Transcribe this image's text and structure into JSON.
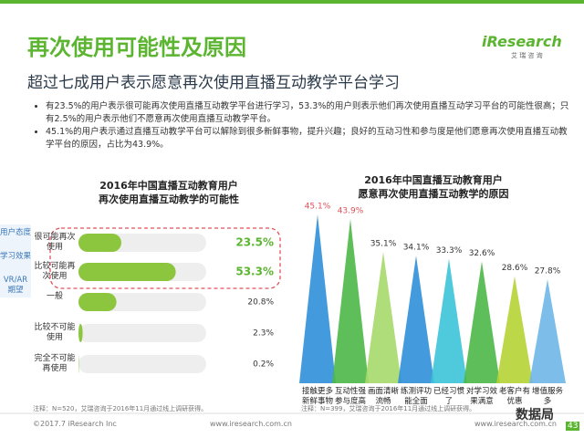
{
  "title": "再次使用可能性及原因",
  "subtitle": "超过七成用户表示愿意再次使用直播互动教学平台学习",
  "logo": "iResearch",
  "logo_sub": "艾 瑞 咨 询",
  "bullets": [
    "有23.5%的用户表示很可能再次使用直播互动教学平台进行学习，53.3%的用户则表示他们再次使用直播互动学习平台的可能性很高；只有2.5%的用户表示他们不愿意再次使用直播互动教学平台。",
    "45.1%的用户表示通过直播互动教学平台可以解除到很多新鲜事物，提升兴趣；良好的互动习性和参与度是他们愿意再次使用直播互动教学平台的原因，占比为43.9%。"
  ],
  "side_tabs": [
    "用户态度",
    "学习效果",
    "VR/AR期望"
  ],
  "footer": {
    "copyright": "©2017.7 iResearch Inc",
    "site": "www.iresearch.com.cn",
    "page": "43",
    "watermark": "数据局"
  },
  "chart_data": [
    {
      "type": "hbar",
      "title": "2016年中国直播互动教育用户\n再次使用直播互动教学的可能性",
      "categories": [
        "很可能再次使用",
        "比较可能再次使用",
        "一般",
        "比较不可能使用",
        "完全不可能再使用"
      ],
      "values": [
        23.5,
        53.3,
        20.8,
        2.3,
        0.2
      ],
      "value_labels": [
        "23.5%",
        "53.3%",
        "20.8%",
        "2.3%",
        "0.2%"
      ],
      "color": "#8cc63f",
      "xlim": [
        0,
        70
      ],
      "note": "注释：N=520，艾瑞咨询于2016年11月通过线上调研获得。"
    },
    {
      "type": "spike",
      "title": "2016年中国直播互动教育用户\n愿意再次使用直播互动教学的原因",
      "categories": [
        "接触更多新鲜事物",
        "互动性强参与度高",
        "画面清晰流畅",
        "练测评功能全面",
        "已经习惯了",
        "对学习效果满意",
        "老客户有优惠",
        "增值服务多"
      ],
      "values": [
        45.1,
        43.9,
        35.1,
        34.1,
        33.3,
        32.6,
        28.6,
        27.8
      ],
      "value_labels": [
        "45.1%",
        "43.9%",
        "35.1%",
        "34.1%",
        "33.3%",
        "32.6%",
        "28.6%",
        "27.8%"
      ],
      "colors": [
        "#2f8fd8",
        "#4cb848",
        "#a6d96a",
        "#2f8fd8",
        "#3cc4d8",
        "#4cb848",
        "#b5d334",
        "#6fb6e8"
      ],
      "label_colors": [
        "#e0525a",
        "#e0525a",
        "#333333",
        "#333333",
        "#333333",
        "#333333",
        "#333333",
        "#333333"
      ],
      "ylim": [
        0,
        50
      ],
      "note": "注释：N=399，艾瑞咨询于2016年11月通过线上调研获得。"
    }
  ]
}
